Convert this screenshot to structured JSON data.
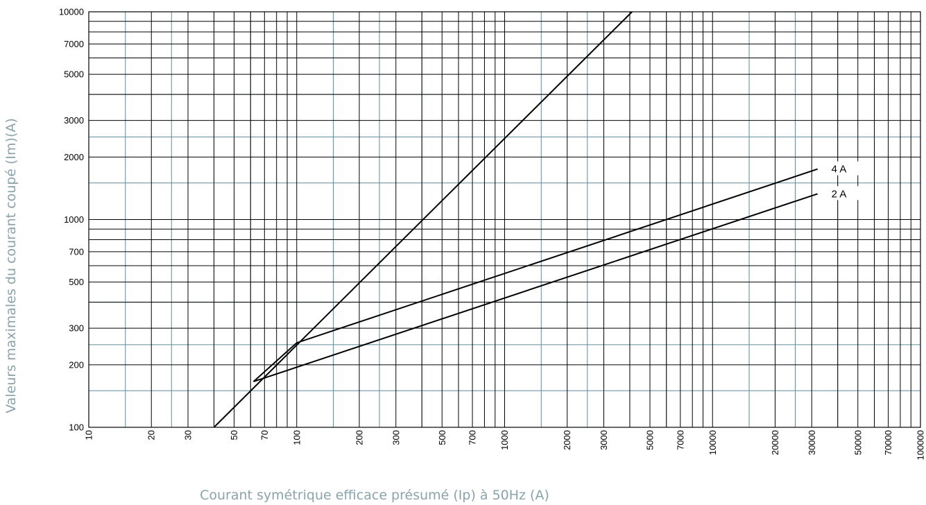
{
  "chart_data": {
    "type": "line",
    "xlabel": "Courant symétrique efficace présumé (Ip) à 50Hz (A)",
    "ylabel": "Valeurs maximales du courant coupé (Im)(A)",
    "x_scale": "log",
    "y_scale": "log",
    "xlim": [
      10,
      100000
    ],
    "ylim": [
      100,
      10000
    ],
    "grid": true,
    "x_ticks": [
      {
        "value": 10,
        "label": "10"
      },
      {
        "value": 20,
        "label": "20"
      },
      {
        "value": 30,
        "label": "30"
      },
      {
        "value": 50,
        "label": "50"
      },
      {
        "value": 70,
        "label": "70"
      },
      {
        "value": 100,
        "label": "100"
      },
      {
        "value": 200,
        "label": "200"
      },
      {
        "value": 300,
        "label": "300"
      },
      {
        "value": 500,
        "label": "500"
      },
      {
        "value": 700,
        "label": "700"
      },
      {
        "value": 1000,
        "label": "1000"
      },
      {
        "value": 2000,
        "label": "2000"
      },
      {
        "value": 3000,
        "label": "3000"
      },
      {
        "value": 5000,
        "label": "5000"
      },
      {
        "value": 7000,
        "label": "7000"
      },
      {
        "value": 10000,
        "label": "10000"
      },
      {
        "value": 20000,
        "label": "20000"
      },
      {
        "value": 30000,
        "label": "30000"
      },
      {
        "value": 50000,
        "label": "50000"
      },
      {
        "value": 70000,
        "label": "70000"
      },
      {
        "value": 100000,
        "label": "100000"
      }
    ],
    "y_ticks": [
      {
        "value": 100,
        "label": "100"
      },
      {
        "value": 200,
        "label": "200"
      },
      {
        "value": 300,
        "label": "300"
      },
      {
        "value": 500,
        "label": "500"
      },
      {
        "value": 700,
        "label": "700"
      },
      {
        "value": 1000,
        "label": "1000"
      },
      {
        "value": 2000,
        "label": "2000"
      },
      {
        "value": 3000,
        "label": "3000"
      },
      {
        "value": 5000,
        "label": "5000"
      },
      {
        "value": 7000,
        "label": "7000"
      },
      {
        "value": 10000,
        "label": "10000"
      }
    ],
    "series": [
      {
        "values": [
          [
            40,
            100
          ],
          [
            4100,
            10000
          ]
        ]
      },
      {
        "name": "4 A",
        "values": [
          [
            62,
            166
          ],
          [
            100,
            255
          ],
          [
            32000,
            1750
          ]
        ]
      },
      {
        "name": "2 A",
        "values": [
          [
            62,
            166
          ],
          [
            32000,
            1330
          ]
        ]
      }
    ],
    "colors": {
      "line": "#000000",
      "grid_major": "#000000",
      "grid_minor": "#5f8a96",
      "axis_title": "#8aa3ab"
    }
  }
}
